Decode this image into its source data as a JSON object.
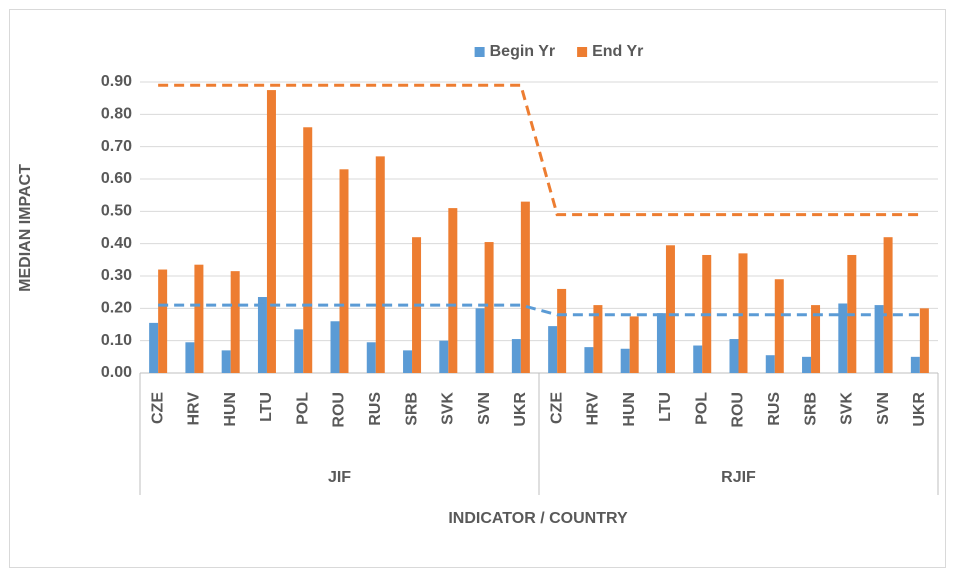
{
  "chart_data": {
    "type": "bar",
    "legend": "top",
    "y_label": "MEDIAN IMPACT",
    "x_label": "INDICATOR / COUNTRY",
    "groups": [
      {
        "name": "JIF",
        "size": 11
      },
      {
        "name": "RJIF",
        "size": 11
      }
    ],
    "categories": [
      "CZE",
      "HRV",
      "HUN",
      "LTU",
      "POL",
      "ROU",
      "RUS",
      "SRB",
      "SVK",
      "SVN",
      "UKR",
      "CZE",
      "HRV",
      "HUN",
      "LTU",
      "POL",
      "ROU",
      "RUS",
      "SRB",
      "SVK",
      "SVN",
      "UKR"
    ],
    "series": [
      {
        "name": "Begin Yr",
        "color": "#5b9bd5",
        "values": [
          0.155,
          0.095,
          0.07,
          0.235,
          0.135,
          0.16,
          0.095,
          0.07,
          0.1,
          0.2,
          0.105,
          0.145,
          0.08,
          0.075,
          0.185,
          0.085,
          0.105,
          0.055,
          0.05,
          0.215,
          0.21,
          0.05
        ]
      },
      {
        "name": "End Yr",
        "color": "#ed7d31",
        "values": [
          0.32,
          0.335,
          0.315,
          0.875,
          0.76,
          0.63,
          0.67,
          0.42,
          0.51,
          0.405,
          0.53,
          0.26,
          0.21,
          0.175,
          0.395,
          0.365,
          0.37,
          0.29,
          0.21,
          0.365,
          0.42,
          0.2
        ]
      }
    ],
    "lines": [
      {
        "color": "#5b9bd5",
        "values": [
          0.21,
          0.21,
          0.21,
          0.21,
          0.21,
          0.21,
          0.21,
          0.21,
          0.21,
          0.21,
          0.21,
          0.18,
          0.18,
          0.18,
          0.18,
          0.18,
          0.18,
          0.18,
          0.18,
          0.18,
          0.18,
          0.18
        ]
      },
      {
        "color": "#ed7d31",
        "values": [
          0.89,
          0.89,
          0.89,
          0.89,
          0.89,
          0.89,
          0.89,
          0.89,
          0.89,
          0.89,
          0.89,
          0.49,
          0.49,
          0.49,
          0.49,
          0.49,
          0.49,
          0.49,
          0.49,
          0.49,
          0.49,
          0.49
        ]
      }
    ],
    "ylim": [
      0,
      0.9
    ],
    "yticks": [
      {
        "value": 0,
        "label": "0.00"
      },
      {
        "value": 0.1,
        "label": "0.10"
      },
      {
        "value": 0.2,
        "label": "0.20"
      },
      {
        "value": 0.3,
        "label": "0.30"
      },
      {
        "value": 0.4,
        "label": "0.40"
      },
      {
        "value": 0.5,
        "label": "0.50"
      },
      {
        "value": 0.6,
        "label": "0.60"
      },
      {
        "value": 0.7,
        "label": "0.70"
      },
      {
        "value": 0.8,
        "label": "0.80"
      },
      {
        "value": 0.9,
        "label": "0.90"
      }
    ],
    "grid": true
  }
}
